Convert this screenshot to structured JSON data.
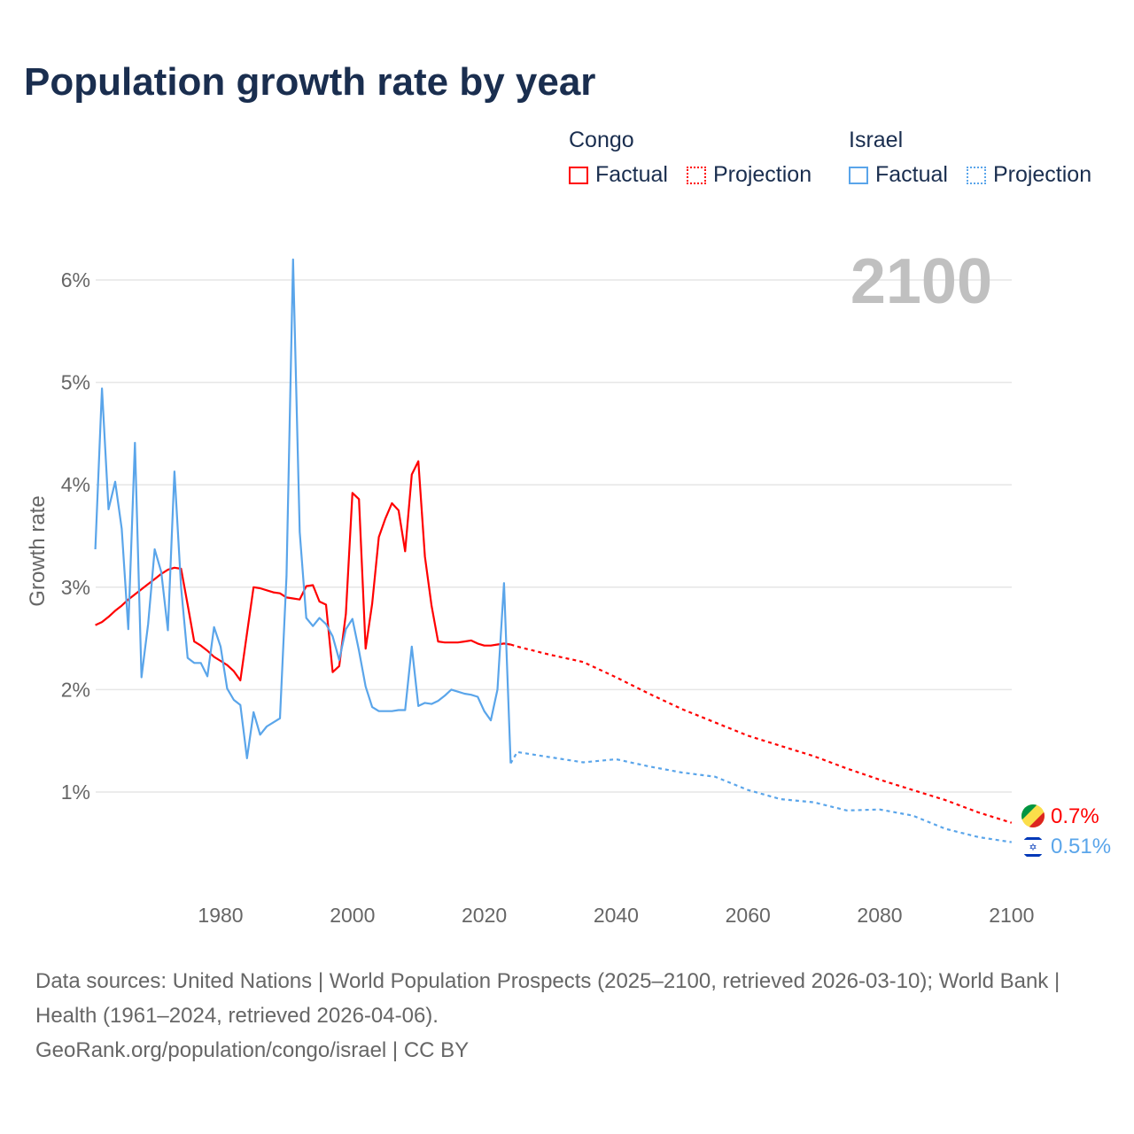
{
  "chart_data": {
    "type": "line",
    "title": "Population growth rate by year",
    "xlabel": "",
    "ylabel": "Growth rate",
    "xlim": [
      1961,
      2100
    ],
    "ylim": [
      0,
      6.4
    ],
    "x_ticks": [
      1980,
      2000,
      2020,
      2040,
      2060,
      2080,
      2100
    ],
    "x_tick_labels": [
      "1980",
      "2000",
      "2020",
      "2040",
      "2060",
      "2080",
      "2100"
    ],
    "y_ticks": [
      1,
      2,
      3,
      4,
      5,
      6
    ],
    "y_tick_labels": [
      "1%",
      "2%",
      "3%",
      "4%",
      "5%",
      "6%"
    ],
    "grid": true,
    "legend_placement": "top-right",
    "year_watermark": "2100",
    "series": [
      {
        "name": "Congo",
        "color": "#ff0000",
        "factual_label": "Factual",
        "projection_label": "Projection",
        "end_label": "0.7%",
        "factual": {
          "x": [
            1961,
            1962,
            1963,
            1964,
            1965,
            1966,
            1967,
            1968,
            1969,
            1970,
            1971,
            1972,
            1973,
            1974,
            1975,
            1976,
            1977,
            1978,
            1979,
            1980,
            1981,
            1982,
            1983,
            1984,
            1985,
            1986,
            1987,
            1988,
            1989,
            1990,
            1991,
            1992,
            1993,
            1994,
            1995,
            1996,
            1997,
            1998,
            1999,
            2000,
            2001,
            2002,
            2003,
            2004,
            2005,
            2006,
            2007,
            2008,
            2009,
            2010,
            2011,
            2012,
            2013,
            2014,
            2015,
            2016,
            2017,
            2018,
            2019,
            2020,
            2021,
            2022,
            2023,
            2024
          ],
          "y": [
            2.63,
            2.66,
            2.71,
            2.77,
            2.82,
            2.88,
            2.93,
            2.98,
            3.03,
            3.08,
            3.13,
            3.17,
            3.19,
            3.18,
            2.83,
            2.47,
            2.43,
            2.38,
            2.32,
            2.28,
            2.24,
            2.18,
            2.09,
            2.55,
            3.0,
            2.99,
            2.97,
            2.95,
            2.94,
            2.9,
            2.89,
            2.88,
            3.01,
            3.02,
            2.86,
            2.83,
            2.17,
            2.23,
            2.74,
            3.92,
            3.86,
            2.4,
            2.84,
            3.49,
            3.67,
            3.82,
            3.75,
            3.35,
            4.1,
            4.23,
            3.3,
            2.82,
            2.47,
            2.46,
            2.46,
            2.46,
            2.47,
            2.48,
            2.45,
            2.43,
            2.43,
            2.44,
            2.45,
            2.44
          ]
        },
        "projection": {
          "x": [
            2024,
            2025,
            2030,
            2035,
            2040,
            2045,
            2050,
            2055,
            2060,
            2065,
            2070,
            2075,
            2080,
            2085,
            2090,
            2095,
            2100
          ],
          "y": [
            2.44,
            2.42,
            2.34,
            2.27,
            2.12,
            1.96,
            1.81,
            1.68,
            1.55,
            1.45,
            1.35,
            1.23,
            1.12,
            1.02,
            0.92,
            0.8,
            0.7
          ]
        }
      },
      {
        "name": "Israel",
        "color": "#5aa5ea",
        "factual_label": "Factual",
        "projection_label": "Projection",
        "end_label": "0.51%",
        "factual": {
          "x": [
            1961,
            1962,
            1963,
            1964,
            1965,
            1966,
            1967,
            1968,
            1969,
            1970,
            1971,
            1972,
            1973,
            1974,
            1975,
            1976,
            1977,
            1978,
            1979,
            1980,
            1981,
            1982,
            1983,
            1984,
            1985,
            1986,
            1987,
            1988,
            1989,
            1990,
            1991,
            1992,
            1993,
            1994,
            1995,
            1996,
            1997,
            1998,
            1999,
            2000,
            2001,
            2002,
            2003,
            2004,
            2005,
            2006,
            2007,
            2008,
            2009,
            2010,
            2011,
            2012,
            2013,
            2014,
            2015,
            2016,
            2017,
            2018,
            2019,
            2020,
            2021,
            2022,
            2023,
            2024
          ],
          "y": [
            3.37,
            4.94,
            3.76,
            4.03,
            3.57,
            2.59,
            4.41,
            2.12,
            2.64,
            3.37,
            3.15,
            2.58,
            4.13,
            3.0,
            2.31,
            2.26,
            2.26,
            2.13,
            2.61,
            2.42,
            2.01,
            1.9,
            1.85,
            1.33,
            1.78,
            1.56,
            1.64,
            1.68,
            1.72,
            3.11,
            6.2,
            3.54,
            2.7,
            2.62,
            2.7,
            2.64,
            2.52,
            2.29,
            2.59,
            2.69,
            2.38,
            2.03,
            1.83,
            1.79,
            1.79,
            1.79,
            1.8,
            1.8,
            2.42,
            1.84,
            1.87,
            1.86,
            1.89,
            1.94,
            2.0,
            1.98,
            1.96,
            1.95,
            1.93,
            1.79,
            1.7,
            2.0,
            3.04,
            1.28
          ]
        },
        "projection": {
          "x": [
            2024,
            2025,
            2030,
            2035,
            2040,
            2045,
            2050,
            2055,
            2060,
            2065,
            2070,
            2075,
            2080,
            2085,
            2090,
            2095,
            2100
          ],
          "y": [
            1.28,
            1.39,
            1.34,
            1.29,
            1.32,
            1.25,
            1.19,
            1.15,
            1.02,
            0.93,
            0.9,
            0.82,
            0.83,
            0.77,
            0.64,
            0.56,
            0.51
          ]
        }
      }
    ]
  },
  "footer": {
    "sources": "Data sources: United Nations | World Population Prospects (2025–2100, retrieved 2026-03-10); World Bank | Health (1961–2024, retrieved 2026-04-06).",
    "credit": "GeoRank.org/population/congo/israel | CC BY"
  }
}
